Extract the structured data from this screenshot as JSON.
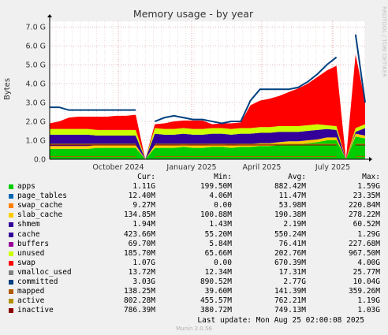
{
  "chart_data": {
    "type": "area",
    "title": "Memory usage - by year",
    "ylabel": "Bytes",
    "ylim": [
      0,
      7.3
    ],
    "yticks": [
      "0.0",
      "1.0 G",
      "2.0 G",
      "3.0 G",
      "4.0 G",
      "5.0 G",
      "6.0 G",
      "7.0 G"
    ],
    "xticks": [
      "October 2024",
      "January 2025",
      "April 2025",
      "July 2025"
    ],
    "side_label": "RRDTOOL / TOBI OETIKER",
    "grid": true,
    "columns": [
      "Cur:",
      "Min:",
      "Avg:",
      "Max:"
    ],
    "series": [
      {
        "name": "apps",
        "color": "#00cc00",
        "cur": "1.11G",
        "min": "199.50M",
        "avg": "882.42M",
        "max": "1.59G"
      },
      {
        "name": "page_tables",
        "color": "#0066b3",
        "cur": "12.40M",
        "min": "4.06M",
        "avg": "11.47M",
        "max": "23.35M"
      },
      {
        "name": "swap_cache",
        "color": "#ff8000",
        "cur": "9.27M",
        "min": "0.00",
        "avg": "53.98M",
        "max": "220.84M"
      },
      {
        "name": "slab_cache",
        "color": "#ffcc00",
        "cur": "134.85M",
        "min": "100.88M",
        "avg": "190.38M",
        "max": "278.22M"
      },
      {
        "name": "shmem",
        "color": "#330099",
        "cur": "1.94M",
        "min": "1.43M",
        "avg": "2.19M",
        "max": "60.52M"
      },
      {
        "name": "cache",
        "color": "#330099",
        "cur": "423.66M",
        "min": "55.20M",
        "avg": "550.24M",
        "max": "1.29G"
      },
      {
        "name": "buffers",
        "color": "#990099",
        "cur": "69.70M",
        "min": "5.84M",
        "avg": "76.41M",
        "max": "227.68M"
      },
      {
        "name": "unused",
        "color": "#ccff00",
        "cur": "185.70M",
        "min": "65.66M",
        "avg": "202.76M",
        "max": "967.50M"
      },
      {
        "name": "swap",
        "color": "#ff0000",
        "cur": "1.07G",
        "min": "0.00",
        "avg": "670.39M",
        "max": "4.00G"
      },
      {
        "name": "vmalloc_used",
        "color": "#808080",
        "cur": "13.72M",
        "min": "12.34M",
        "avg": "17.31M",
        "max": "25.77M"
      },
      {
        "name": "committed",
        "color": "#004080",
        "cur": "3.03G",
        "min": "890.52M",
        "avg": "2.77G",
        "max": "10.04G"
      },
      {
        "name": "mapped",
        "color": "#b35a00",
        "cur": "138.25M",
        "min": "39.60M",
        "avg": "141.39M",
        "max": "359.26M"
      },
      {
        "name": "active",
        "color": "#b38f00",
        "cur": "802.28M",
        "min": "455.57M",
        "avg": "762.21M",
        "max": "1.19G"
      },
      {
        "name": "inactive",
        "color": "#8b0000",
        "cur": "786.39M",
        "min": "380.72M",
        "avg": "749.13M",
        "max": "1.03G"
      }
    ],
    "approx_stack": {
      "apps": [
        0.55,
        0.55,
        0.55,
        0.55,
        0.55,
        0.6,
        0.6,
        0.6,
        0.6,
        0.6,
        0,
        0.6,
        0.6,
        0.6,
        0.65,
        0.6,
        0.6,
        0.65,
        0.65,
        0.6,
        0.65,
        0.65,
        0.7,
        0.7,
        0.75,
        0.8,
        0.8,
        0.85,
        0.9,
        1.0,
        1.0,
        0,
        1.2,
        1.1
      ],
      "slab": [
        0.15,
        0.15,
        0.15,
        0.15,
        0.15,
        0.15,
        0.15,
        0.15,
        0.15,
        0.15,
        0,
        0.15,
        0.15,
        0.15,
        0.15,
        0.15,
        0.15,
        0.15,
        0.15,
        0.15,
        0.15,
        0.15,
        0.15,
        0.15,
        0.15,
        0.15,
        0.15,
        0.15,
        0.15,
        0.15,
        0.15,
        0,
        0.15,
        0.15
      ],
      "cache": [
        0.6,
        0.6,
        0.6,
        0.6,
        0.6,
        0.5,
        0.5,
        0.5,
        0.5,
        0.5,
        0,
        0.6,
        0.55,
        0.55,
        0.55,
        0.55,
        0.55,
        0.55,
        0.55,
        0.55,
        0.55,
        0.55,
        0.55,
        0.55,
        0.55,
        0.5,
        0.5,
        0.5,
        0.5,
        0.45,
        0.4,
        0,
        0.1,
        0.4
      ],
      "unused": [
        0.3,
        0.3,
        0.3,
        0.3,
        0.3,
        0.3,
        0.3,
        0.3,
        0.3,
        0.3,
        0,
        0.3,
        0.3,
        0.3,
        0.3,
        0.3,
        0.3,
        0.3,
        0.3,
        0.3,
        0.3,
        0.3,
        0.3,
        0.3,
        0.3,
        0.3,
        0.3,
        0.3,
        0.3,
        0.2,
        0.2,
        0,
        0.2,
        0.2
      ],
      "swap": [
        0.3,
        0.4,
        0.6,
        0.65,
        0.65,
        0.7,
        0.7,
        0.75,
        0.75,
        0.8,
        0,
        0.2,
        0.3,
        0.4,
        0.4,
        0.45,
        0.45,
        0.2,
        0.25,
        0.3,
        0.3,
        1.2,
        1.4,
        1.5,
        1.6,
        1.8,
        2.0,
        2.2,
        2.5,
        2.9,
        3.2,
        0,
        3.9,
        1.2
      ],
      "committed": [
        2.75,
        2.75,
        2.6,
        2.6,
        2.6,
        2.6,
        2.6,
        2.6,
        2.6,
        2.6,
        0,
        2.0,
        2.2,
        2.3,
        2.2,
        2.1,
        2.1,
        2.0,
        1.9,
        2.0,
        2.0,
        3.1,
        3.7,
        3.7,
        3.7,
        3.7,
        3.8,
        4.1,
        4.5,
        5.0,
        5.4,
        0,
        6.6,
        3.0
      ]
    }
  },
  "last_update": "Last update: Mon Aug 25 02:00:08 2025",
  "footer": "Munin 2.0.56"
}
